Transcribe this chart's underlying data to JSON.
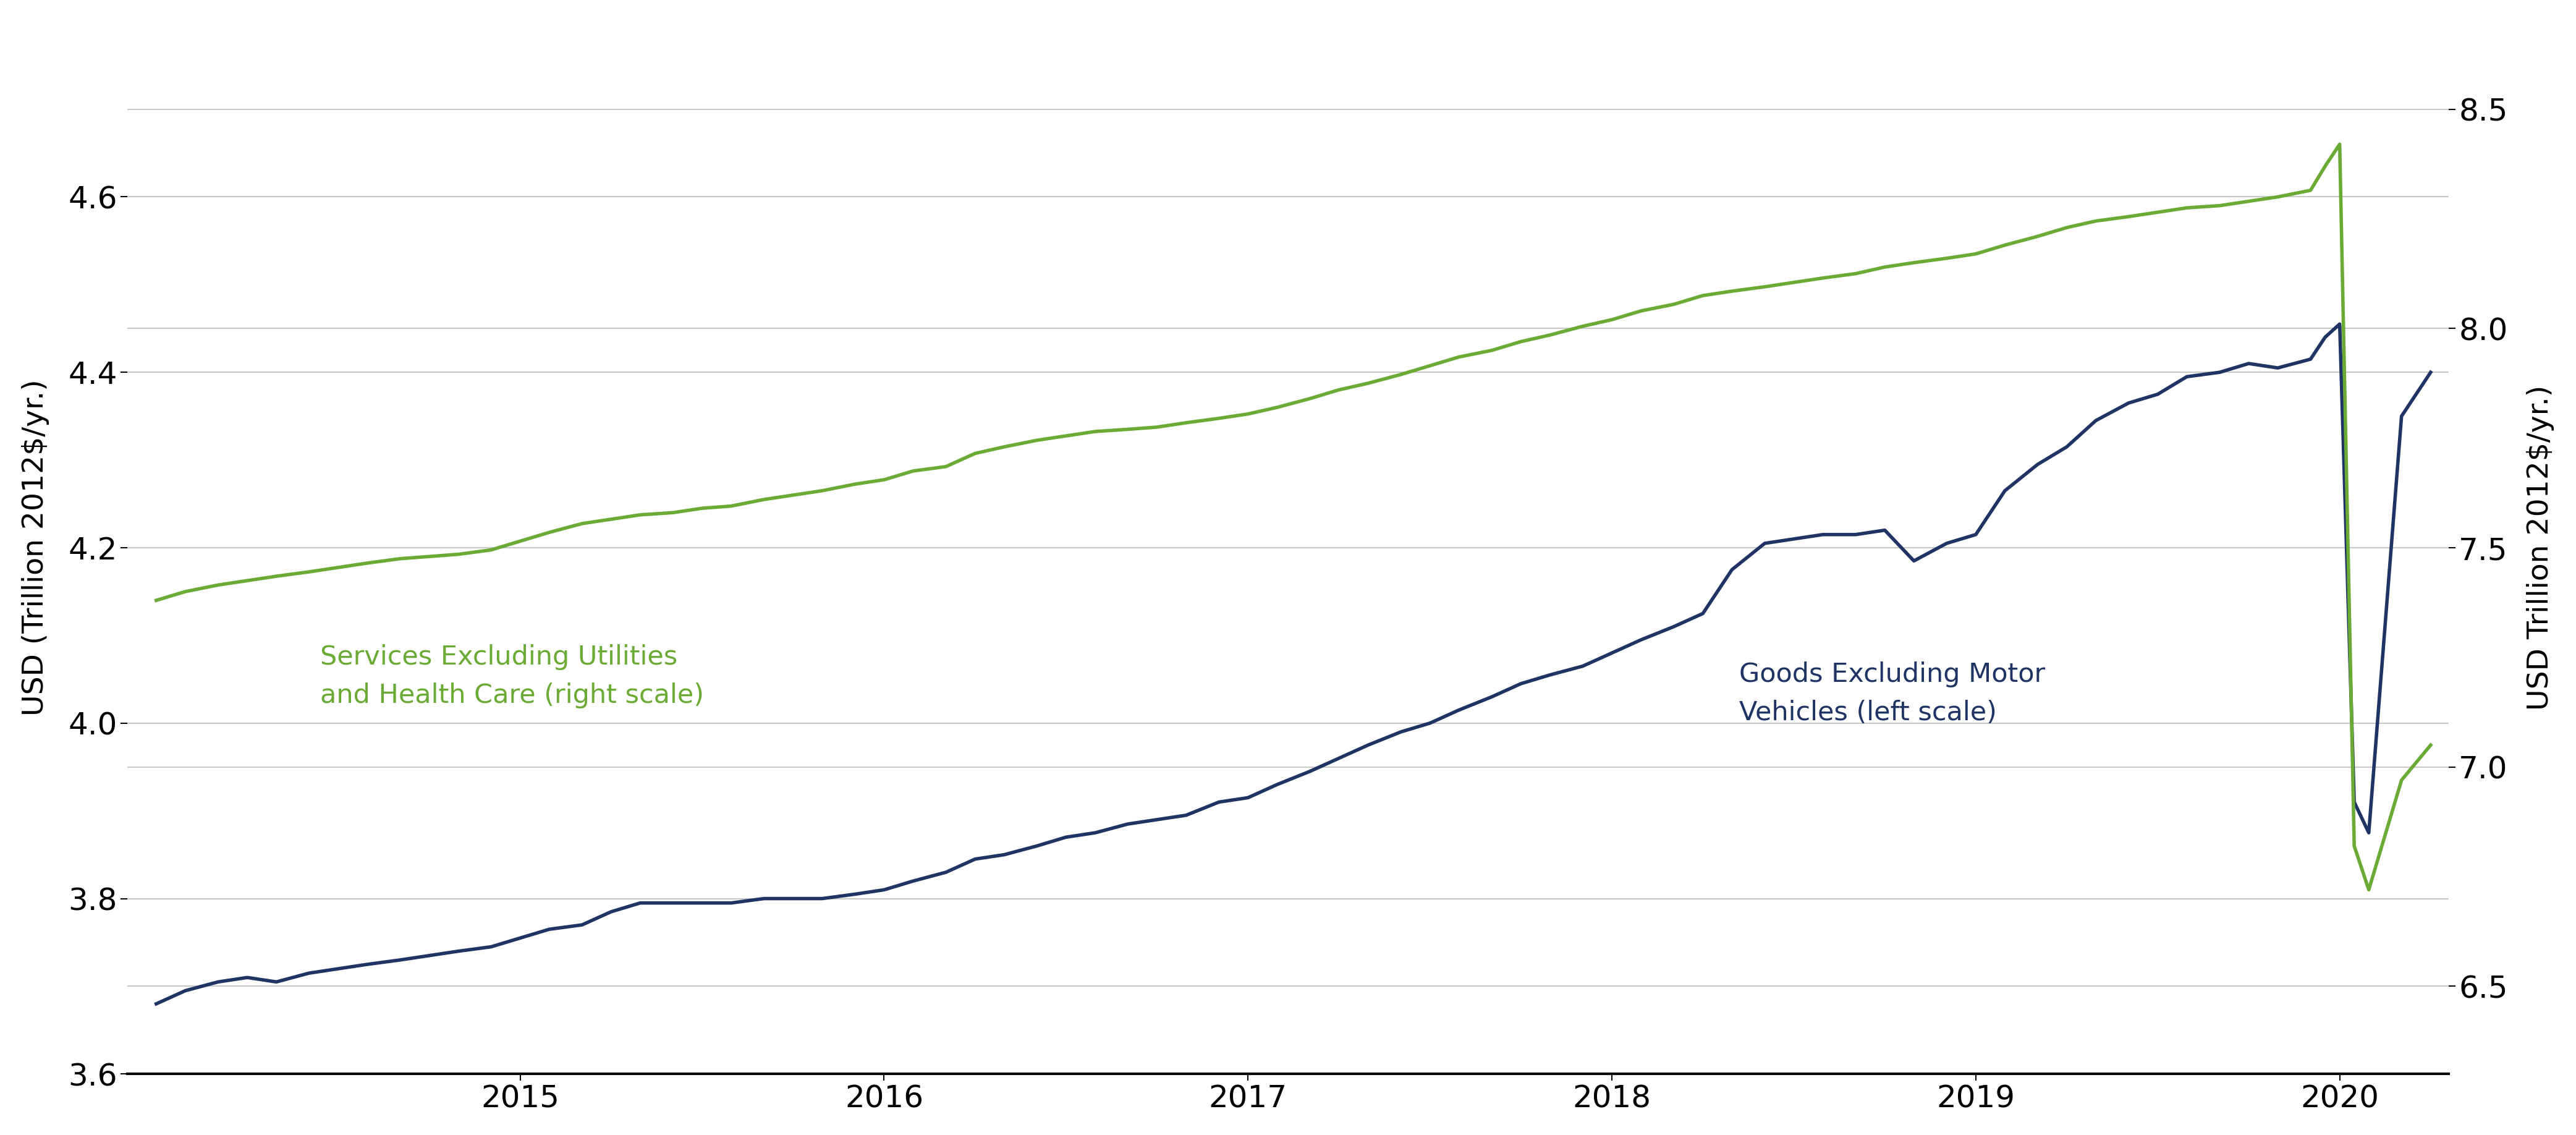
{
  "left_ylabel": "USD (Trillion 2012$/yr.)",
  "right_ylabel": "USD Trillion 2012$/yr.)",
  "left_ylim": [
    3.6,
    4.8
  ],
  "right_ylim": [
    6.3,
    8.7
  ],
  "left_yticks": [
    3.6,
    3.8,
    4.0,
    4.2,
    4.4,
    4.6
  ],
  "right_yticks": [
    6.5,
    7.0,
    7.5,
    8.0,
    8.5
  ],
  "green_color": "#6aaa35",
  "blue_color": "#1f3464",
  "grid_color": "#c8c8c8",
  "label_green": "Services Excluding Utilities\nand Health Care (right scale)",
  "label_blue": "Goods Excluding Motor\nVehicles (left scale)",
  "goods_x": [
    2014.0,
    2014.08,
    2014.17,
    2014.25,
    2014.33,
    2014.42,
    2014.5,
    2014.58,
    2014.67,
    2014.75,
    2014.83,
    2014.92,
    2015.0,
    2015.08,
    2015.17,
    2015.25,
    2015.33,
    2015.42,
    2015.5,
    2015.58,
    2015.67,
    2015.75,
    2015.83,
    2015.92,
    2016.0,
    2016.08,
    2016.17,
    2016.25,
    2016.33,
    2016.42,
    2016.5,
    2016.58,
    2016.67,
    2016.75,
    2016.83,
    2016.92,
    2017.0,
    2017.08,
    2017.17,
    2017.25,
    2017.33,
    2017.42,
    2017.5,
    2017.58,
    2017.67,
    2017.75,
    2017.83,
    2017.92,
    2018.0,
    2018.08,
    2018.17,
    2018.25,
    2018.33,
    2018.42,
    2018.5,
    2018.58,
    2018.67,
    2018.75,
    2018.83,
    2018.92,
    2019.0,
    2019.08,
    2019.17,
    2019.25,
    2019.33,
    2019.42,
    2019.5,
    2019.58,
    2019.67,
    2019.75,
    2019.83,
    2019.92,
    2019.96,
    2020.0,
    2020.04,
    2020.08,
    2020.17,
    2020.25
  ],
  "goods_y": [
    3.68,
    3.695,
    3.705,
    3.71,
    3.705,
    3.715,
    3.72,
    3.725,
    3.73,
    3.735,
    3.74,
    3.745,
    3.755,
    3.765,
    3.77,
    3.785,
    3.795,
    3.795,
    3.795,
    3.795,
    3.8,
    3.8,
    3.8,
    3.805,
    3.81,
    3.82,
    3.83,
    3.845,
    3.85,
    3.86,
    3.87,
    3.875,
    3.885,
    3.89,
    3.895,
    3.91,
    3.915,
    3.93,
    3.945,
    3.96,
    3.975,
    3.99,
    4.0,
    4.015,
    4.03,
    4.045,
    4.055,
    4.065,
    4.08,
    4.095,
    4.11,
    4.125,
    4.175,
    4.205,
    4.21,
    4.215,
    4.215,
    4.22,
    4.185,
    4.205,
    4.215,
    4.265,
    4.295,
    4.315,
    4.345,
    4.365,
    4.375,
    4.395,
    4.4,
    4.41,
    4.405,
    4.415,
    4.44,
    4.455,
    3.91,
    3.875,
    4.35,
    4.4
  ],
  "services_x": [
    2014.0,
    2014.08,
    2014.17,
    2014.25,
    2014.33,
    2014.42,
    2014.5,
    2014.58,
    2014.67,
    2014.75,
    2014.83,
    2014.92,
    2015.0,
    2015.08,
    2015.17,
    2015.25,
    2015.33,
    2015.42,
    2015.5,
    2015.58,
    2015.67,
    2015.75,
    2015.83,
    2015.92,
    2016.0,
    2016.08,
    2016.17,
    2016.25,
    2016.33,
    2016.42,
    2016.5,
    2016.58,
    2016.67,
    2016.75,
    2016.83,
    2016.92,
    2017.0,
    2017.08,
    2017.17,
    2017.25,
    2017.33,
    2017.42,
    2017.5,
    2017.58,
    2017.67,
    2017.75,
    2017.83,
    2017.92,
    2018.0,
    2018.08,
    2018.17,
    2018.25,
    2018.33,
    2018.42,
    2018.5,
    2018.58,
    2018.67,
    2018.75,
    2018.83,
    2018.92,
    2019.0,
    2019.08,
    2019.17,
    2019.25,
    2019.33,
    2019.42,
    2019.5,
    2019.58,
    2019.67,
    2019.75,
    2019.83,
    2019.92,
    2019.96,
    2020.0,
    2020.04,
    2020.08,
    2020.17,
    2020.25
  ],
  "services_y": [
    7.38,
    7.4,
    7.415,
    7.425,
    7.435,
    7.445,
    7.455,
    7.465,
    7.475,
    7.48,
    7.485,
    7.495,
    7.515,
    7.535,
    7.555,
    7.565,
    7.575,
    7.58,
    7.59,
    7.595,
    7.61,
    7.62,
    7.63,
    7.645,
    7.655,
    7.675,
    7.685,
    7.715,
    7.73,
    7.745,
    7.755,
    7.765,
    7.77,
    7.775,
    7.785,
    7.795,
    7.805,
    7.82,
    7.84,
    7.86,
    7.875,
    7.895,
    7.915,
    7.935,
    7.95,
    7.97,
    7.985,
    8.005,
    8.02,
    8.04,
    8.055,
    8.075,
    8.085,
    8.095,
    8.105,
    8.115,
    8.125,
    8.14,
    8.15,
    8.16,
    8.17,
    8.19,
    8.21,
    8.23,
    8.245,
    8.255,
    8.265,
    8.275,
    8.28,
    8.29,
    8.3,
    8.315,
    8.37,
    8.42,
    6.82,
    6.72,
    6.97,
    7.05
  ],
  "xticks": [
    2015,
    2016,
    2017,
    2018,
    2019,
    2020
  ],
  "xlim_left": 2013.92,
  "xlim_right": 2020.3
}
